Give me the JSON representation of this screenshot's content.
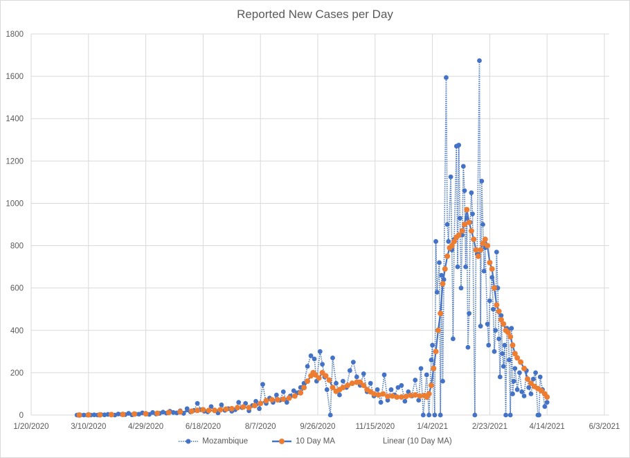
{
  "chart_data": {
    "type": "line",
    "title": "Reported New Cases per Day",
    "xlabel": "",
    "ylabel": "",
    "x_units": "days since 1/20/2020",
    "xlim": [
      0,
      500
    ],
    "ylim": [
      0,
      1800
    ],
    "y_ticks": [
      0,
      200,
      400,
      600,
      800,
      1000,
      1200,
      1400,
      1600,
      1800
    ],
    "x_ticks": [
      {
        "day": 0,
        "label": "1/20/2020"
      },
      {
        "day": 50,
        "label": "3/10/2020"
      },
      {
        "day": 100,
        "label": "4/29/2020"
      },
      {
        "day": 150,
        "label": "6/18/2020"
      },
      {
        "day": 200,
        "label": "8/7/2020"
      },
      {
        "day": 250,
        "label": "9/26/2020"
      },
      {
        "day": 300,
        "label": "11/15/2020"
      },
      {
        "day": 350,
        "label": "1/4/2021"
      },
      {
        "day": 400,
        "label": "2/23/2021"
      },
      {
        "day": 450,
        "label": "4/14/2021"
      },
      {
        "day": 500,
        "label": "6/3/2021"
      }
    ],
    "grid": true,
    "legend_position": "bottom",
    "series": [
      {
        "name": "Mozambique",
        "color": "#4472C4",
        "style": "dotted-line-with-markers",
        "points": [
          [
            40,
            0
          ],
          [
            43,
            0
          ],
          [
            46,
            0
          ],
          [
            49,
            0
          ],
          [
            52,
            0
          ],
          [
            55,
            1
          ],
          [
            58,
            0
          ],
          [
            61,
            2
          ],
          [
            64,
            1
          ],
          [
            67,
            3
          ],
          [
            70,
            2
          ],
          [
            73,
            0
          ],
          [
            76,
            5
          ],
          [
            79,
            3
          ],
          [
            82,
            2
          ],
          [
            85,
            8
          ],
          [
            88,
            1
          ],
          [
            91,
            5
          ],
          [
            94,
            4
          ],
          [
            97,
            10
          ],
          [
            100,
            6
          ],
          [
            103,
            3
          ],
          [
            106,
            12
          ],
          [
            109,
            5
          ],
          [
            112,
            8
          ],
          [
            115,
            14
          ],
          [
            118,
            9
          ],
          [
            121,
            18
          ],
          [
            124,
            12
          ],
          [
            127,
            10
          ],
          [
            130,
            20
          ],
          [
            133,
            8
          ],
          [
            136,
            30
          ],
          [
            139,
            15
          ],
          [
            142,
            22
          ],
          [
            145,
            55
          ],
          [
            148,
            25
          ],
          [
            151,
            18
          ],
          [
            154,
            15
          ],
          [
            157,
            40
          ],
          [
            160,
            20
          ],
          [
            163,
            10
          ],
          [
            166,
            48
          ],
          [
            169,
            22
          ],
          [
            172,
            30
          ],
          [
            175,
            18
          ],
          [
            178,
            25
          ],
          [
            181,
            60
          ],
          [
            184,
            35
          ],
          [
            187,
            55
          ],
          [
            190,
            20
          ],
          [
            193,
            45
          ],
          [
            196,
            65
          ],
          [
            199,
            30
          ],
          [
            202,
            145
          ],
          [
            205,
            55
          ],
          [
            208,
            80
          ],
          [
            211,
            60
          ],
          [
            214,
            95
          ],
          [
            217,
            70
          ],
          [
            220,
            110
          ],
          [
            223,
            60
          ],
          [
            226,
            90
          ],
          [
            229,
            115
          ],
          [
            232,
            105
          ],
          [
            235,
            130
          ],
          [
            238,
            150
          ],
          [
            241,
            230
          ],
          [
            244,
            280
          ],
          [
            247,
            265
          ],
          [
            249,
            160
          ],
          [
            252,
            300
          ],
          [
            254,
            240
          ],
          [
            256,
            180
          ],
          [
            258,
            120
          ],
          [
            261,
            0
          ],
          [
            263,
            270
          ],
          [
            266,
            150
          ],
          [
            269,
            95
          ],
          [
            272,
            160
          ],
          [
            275,
            130
          ],
          [
            278,
            210
          ],
          [
            281,
            250
          ],
          [
            284,
            180
          ],
          [
            287,
            140
          ],
          [
            290,
            195
          ],
          [
            293,
            110
          ],
          [
            296,
            150
          ],
          [
            299,
            90
          ],
          [
            302,
            120
          ],
          [
            305,
            60
          ],
          [
            308,
            190
          ],
          [
            311,
            70
          ],
          [
            314,
            120
          ],
          [
            317,
            95
          ],
          [
            320,
            130
          ],
          [
            323,
            140
          ],
          [
            326,
            65
          ],
          [
            329,
            110
          ],
          [
            332,
            90
          ],
          [
            335,
            165
          ],
          [
            338,
            70
          ],
          [
            340,
            220
          ],
          [
            342,
            0
          ],
          [
            345,
            190
          ],
          [
            347,
            0
          ],
          [
            349,
            260
          ],
          [
            350,
            330
          ],
          [
            352,
            0
          ],
          [
            353,
            820
          ],
          [
            354,
            580
          ],
          [
            356,
            720
          ],
          [
            357,
            0
          ],
          [
            358,
            660
          ],
          [
            359,
            160
          ],
          [
            360,
            640
          ],
          [
            362,
            1594
          ],
          [
            363,
            900
          ],
          [
            364,
            820
          ],
          [
            366,
            1125
          ],
          [
            367,
            780
          ],
          [
            368,
            360
          ],
          [
            369,
            830
          ],
          [
            371,
            1270
          ],
          [
            372,
            700
          ],
          [
            373,
            1275
          ],
          [
            374,
            930
          ],
          [
            375,
            600
          ],
          [
            376,
            850
          ],
          [
            377,
            1175
          ],
          [
            378,
            1060
          ],
          [
            379,
            700
          ],
          [
            380,
            930
          ],
          [
            381,
            320
          ],
          [
            382,
            480
          ],
          [
            383,
            910
          ],
          [
            384,
            1050
          ],
          [
            385,
            950
          ],
          [
            387,
            0
          ],
          [
            388,
            780
          ],
          [
            389,
            760
          ],
          [
            391,
            1674
          ],
          [
            392,
            420
          ],
          [
            393,
            1105
          ],
          [
            394,
            900
          ],
          [
            395,
            680
          ],
          [
            396,
            790
          ],
          [
            398,
            430
          ],
          [
            399,
            330
          ],
          [
            400,
            540
          ],
          [
            402,
            650
          ],
          [
            403,
            500
          ],
          [
            404,
            300
          ],
          [
            405,
            400
          ],
          [
            406,
            770
          ],
          [
            407,
            600
          ],
          [
            408,
            360
          ],
          [
            409,
            180
          ],
          [
            410,
            470
          ],
          [
            411,
            290
          ],
          [
            412,
            230
          ],
          [
            413,
            330
          ],
          [
            414,
            0
          ],
          [
            415,
            410
          ],
          [
            416,
            400
          ],
          [
            417,
            260
          ],
          [
            418,
            0
          ],
          [
            419,
            410
          ],
          [
            420,
            100
          ],
          [
            421,
            160
          ],
          [
            422,
            220
          ],
          [
            424,
            120
          ],
          [
            426,
            200
          ],
          [
            428,
            110
          ],
          [
            430,
            90
          ],
          [
            432,
            210
          ],
          [
            434,
            130
          ],
          [
            436,
            100
          ],
          [
            438,
            170
          ],
          [
            440,
            200
          ],
          [
            442,
            0
          ],
          [
            443,
            0
          ],
          [
            444,
            180
          ],
          [
            446,
            120
          ],
          [
            448,
            40
          ],
          [
            450,
            60
          ]
        ]
      },
      {
        "name": "10 Day MA",
        "color": "#4472C4",
        "marker_color": "#ED7D31",
        "style": "solid-line-with-markers",
        "points": [
          [
            42,
            0
          ],
          [
            50,
            1
          ],
          [
            60,
            1
          ],
          [
            70,
            2
          ],
          [
            80,
            3
          ],
          [
            90,
            5
          ],
          [
            100,
            6
          ],
          [
            110,
            8
          ],
          [
            120,
            12
          ],
          [
            130,
            15
          ],
          [
            140,
            18
          ],
          [
            145,
            22
          ],
          [
            150,
            25
          ],
          [
            155,
            22
          ],
          [
            160,
            22
          ],
          [
            165,
            25
          ],
          [
            170,
            28
          ],
          [
            175,
            30
          ],
          [
            180,
            35
          ],
          [
            185,
            38
          ],
          [
            190,
            35
          ],
          [
            195,
            45
          ],
          [
            200,
            55
          ],
          [
            205,
            68
          ],
          [
            210,
            72
          ],
          [
            215,
            72
          ],
          [
            220,
            75
          ],
          [
            225,
            80
          ],
          [
            230,
            90
          ],
          [
            235,
            105
          ],
          [
            238,
            130
          ],
          [
            241,
            160
          ],
          [
            244,
            185
          ],
          [
            246,
            200
          ],
          [
            248,
            190
          ],
          [
            251,
            175
          ],
          [
            254,
            200
          ],
          [
            257,
            185
          ],
          [
            260,
            165
          ],
          [
            263,
            130
          ],
          [
            266,
            112
          ],
          [
            269,
            120
          ],
          [
            272,
            130
          ],
          [
            276,
            140
          ],
          [
            280,
            150
          ],
          [
            284,
            155
          ],
          [
            287,
            155
          ],
          [
            290,
            140
          ],
          [
            293,
            120
          ],
          [
            296,
            110
          ],
          [
            299,
            100
          ],
          [
            303,
            95
          ],
          [
            307,
            100
          ],
          [
            311,
            88
          ],
          [
            315,
            90
          ],
          [
            319,
            85
          ],
          [
            323,
            85
          ],
          [
            327,
            88
          ],
          [
            331,
            93
          ],
          [
            335,
            95
          ],
          [
            339,
            90
          ],
          [
            343,
            92
          ],
          [
            345,
            85
          ],
          [
            347,
            100
          ],
          [
            349,
            140
          ],
          [
            351,
            220
          ],
          [
            353,
            300
          ],
          [
            355,
            400
          ],
          [
            357,
            480
          ],
          [
            359,
            620
          ],
          [
            361,
            690
          ],
          [
            363,
            750
          ],
          [
            365,
            790
          ],
          [
            367,
            800
          ],
          [
            369,
            820
          ],
          [
            371,
            840
          ],
          [
            373,
            850
          ],
          [
            376,
            870
          ],
          [
            378,
            900
          ],
          [
            380,
            970
          ],
          [
            382,
            910
          ],
          [
            384,
            870
          ],
          [
            386,
            830
          ],
          [
            388,
            780
          ],
          [
            390,
            750
          ],
          [
            392,
            780
          ],
          [
            394,
            810
          ],
          [
            396,
            830
          ],
          [
            398,
            800
          ],
          [
            400,
            720
          ],
          [
            402,
            690
          ],
          [
            404,
            600
          ],
          [
            406,
            520
          ],
          [
            408,
            490
          ],
          [
            410,
            450
          ],
          [
            412,
            430
          ],
          [
            414,
            400
          ],
          [
            416,
            390
          ],
          [
            418,
            370
          ],
          [
            420,
            330
          ],
          [
            422,
            290
          ],
          [
            424,
            270
          ],
          [
            427,
            250
          ],
          [
            430,
            220
          ],
          [
            433,
            170
          ],
          [
            436,
            150
          ],
          [
            439,
            135
          ],
          [
            442,
            125
          ],
          [
            445,
            115
          ],
          [
            448,
            100
          ],
          [
            450,
            85
          ]
        ]
      },
      {
        "name": "Linear (10 Day MA)",
        "style": "trendline-hidden",
        "points": []
      }
    ]
  }
}
